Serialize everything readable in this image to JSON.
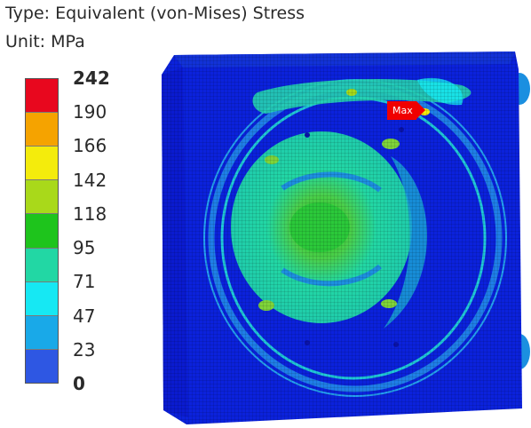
{
  "result": {
    "type_line": "Type: Equivalent (von-Mises) Stress",
    "unit_line": "Unit: MPa"
  },
  "legend": {
    "colors": [
      "#e8071e",
      "#f5a300",
      "#f4ec0c",
      "#a9d91a",
      "#1ec41c",
      "#22d7a4",
      "#16e8f3",
      "#19a9e8",
      "#2e57e3",
      "#0a13dd"
    ],
    "labels": [
      "242",
      "190",
      "166",
      "142",
      "118",
      "95",
      "71",
      "47",
      "23",
      "0"
    ]
  },
  "model": {
    "max_label": "Max"
  }
}
